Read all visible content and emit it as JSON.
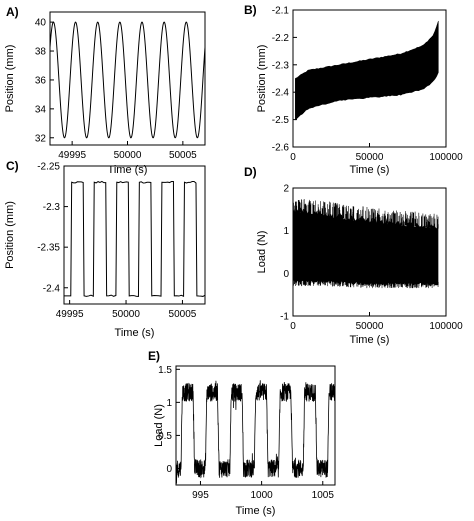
{
  "chart_data": [
    {
      "id": "A",
      "panel_label": "A)",
      "type": "line",
      "description_kind": "sine",
      "xlabel": "Time (s)",
      "ylabel": "Position (mm)",
      "xlim": [
        49993,
        50007
      ],
      "ylim": [
        31.5,
        40.7
      ],
      "xticks": [
        49995,
        50000,
        50005
      ],
      "yticks": [
        32,
        34,
        36,
        38,
        40
      ],
      "series": [
        {
          "period_s": 2.0,
          "min": 32,
          "max": 40,
          "color": "#000000"
        }
      ]
    },
    {
      "id": "B",
      "panel_label": "B)",
      "type": "area",
      "description_kind": "envelope",
      "xlabel": "Time (s)",
      "ylabel": "Position (mm)",
      "xlim": [
        0,
        100000
      ],
      "ylim": [
        -2.6,
        -2.1
      ],
      "xticks": [
        0,
        50000,
        100000
      ],
      "yticks": [
        -2.1,
        -2.2,
        -2.3,
        -2.4,
        -2.5,
        -2.6
      ],
      "upper_envelope": [
        [
          1500,
          -2.35
        ],
        [
          10000,
          -2.32
        ],
        [
          30000,
          -2.3
        ],
        [
          50000,
          -2.28
        ],
        [
          70000,
          -2.26
        ],
        [
          85000,
          -2.23
        ],
        [
          92000,
          -2.19
        ],
        [
          95000,
          -2.14
        ]
      ],
      "lower_envelope": [
        [
          1500,
          -2.5
        ],
        [
          10000,
          -2.46
        ],
        [
          30000,
          -2.43
        ],
        [
          50000,
          -2.42
        ],
        [
          70000,
          -2.41
        ],
        [
          85000,
          -2.39
        ],
        [
          92000,
          -2.36
        ],
        [
          95000,
          -2.33
        ]
      ],
      "series": [
        {
          "color": "#000000"
        }
      ]
    },
    {
      "id": "C",
      "panel_label": "C)",
      "type": "line",
      "description_kind": "square",
      "xlabel": "Time (s)",
      "ylabel": "Position (mm)",
      "xlim": [
        49994.5,
        50007
      ],
      "ylim": [
        -2.42,
        -2.25
      ],
      "xticks": [
        49995,
        50000,
        50005
      ],
      "yticks": [
        -2.25,
        -2.3,
        -2.35,
        -2.4
      ],
      "series": [
        {
          "period_s": 2.0,
          "high": -2.27,
          "low": -2.41,
          "color": "#000000"
        }
      ]
    },
    {
      "id": "D",
      "panel_label": "D)",
      "type": "area",
      "description_kind": "noise",
      "xlabel": "Time (s)",
      "ylabel": "Load (N)",
      "xlim": [
        0,
        100000
      ],
      "ylim": [
        -1,
        2
      ],
      "xticks": [
        0,
        50000,
        100000
      ],
      "yticks": [
        -1,
        0,
        1,
        2
      ],
      "upper_envelope": [
        [
          0,
          1.7
        ],
        [
          20000,
          1.6
        ],
        [
          50000,
          1.45
        ],
        [
          80000,
          1.35
        ],
        [
          95000,
          1.3
        ]
      ],
      "lower_envelope": [
        [
          0,
          -0.25
        ],
        [
          20000,
          -0.25
        ],
        [
          50000,
          -0.3
        ],
        [
          80000,
          -0.3
        ],
        [
          95000,
          -0.3
        ]
      ],
      "series": [
        {
          "color": "#000000"
        }
      ]
    },
    {
      "id": "E",
      "panel_label": "E)",
      "type": "line",
      "description_kind": "noisy-square",
      "xlabel": "Time (s)",
      "ylabel": "Load (N)",
      "xlim": [
        993,
        1006
      ],
      "ylim": [
        -0.25,
        1.55
      ],
      "xticks": [
        995,
        1000,
        1005
      ],
      "yticks": [
        0,
        0.5,
        1,
        1.5
      ],
      "series": [
        {
          "period_s": 2.0,
          "high": 1.15,
          "low": 0.0,
          "color": "#000000"
        }
      ]
    }
  ]
}
